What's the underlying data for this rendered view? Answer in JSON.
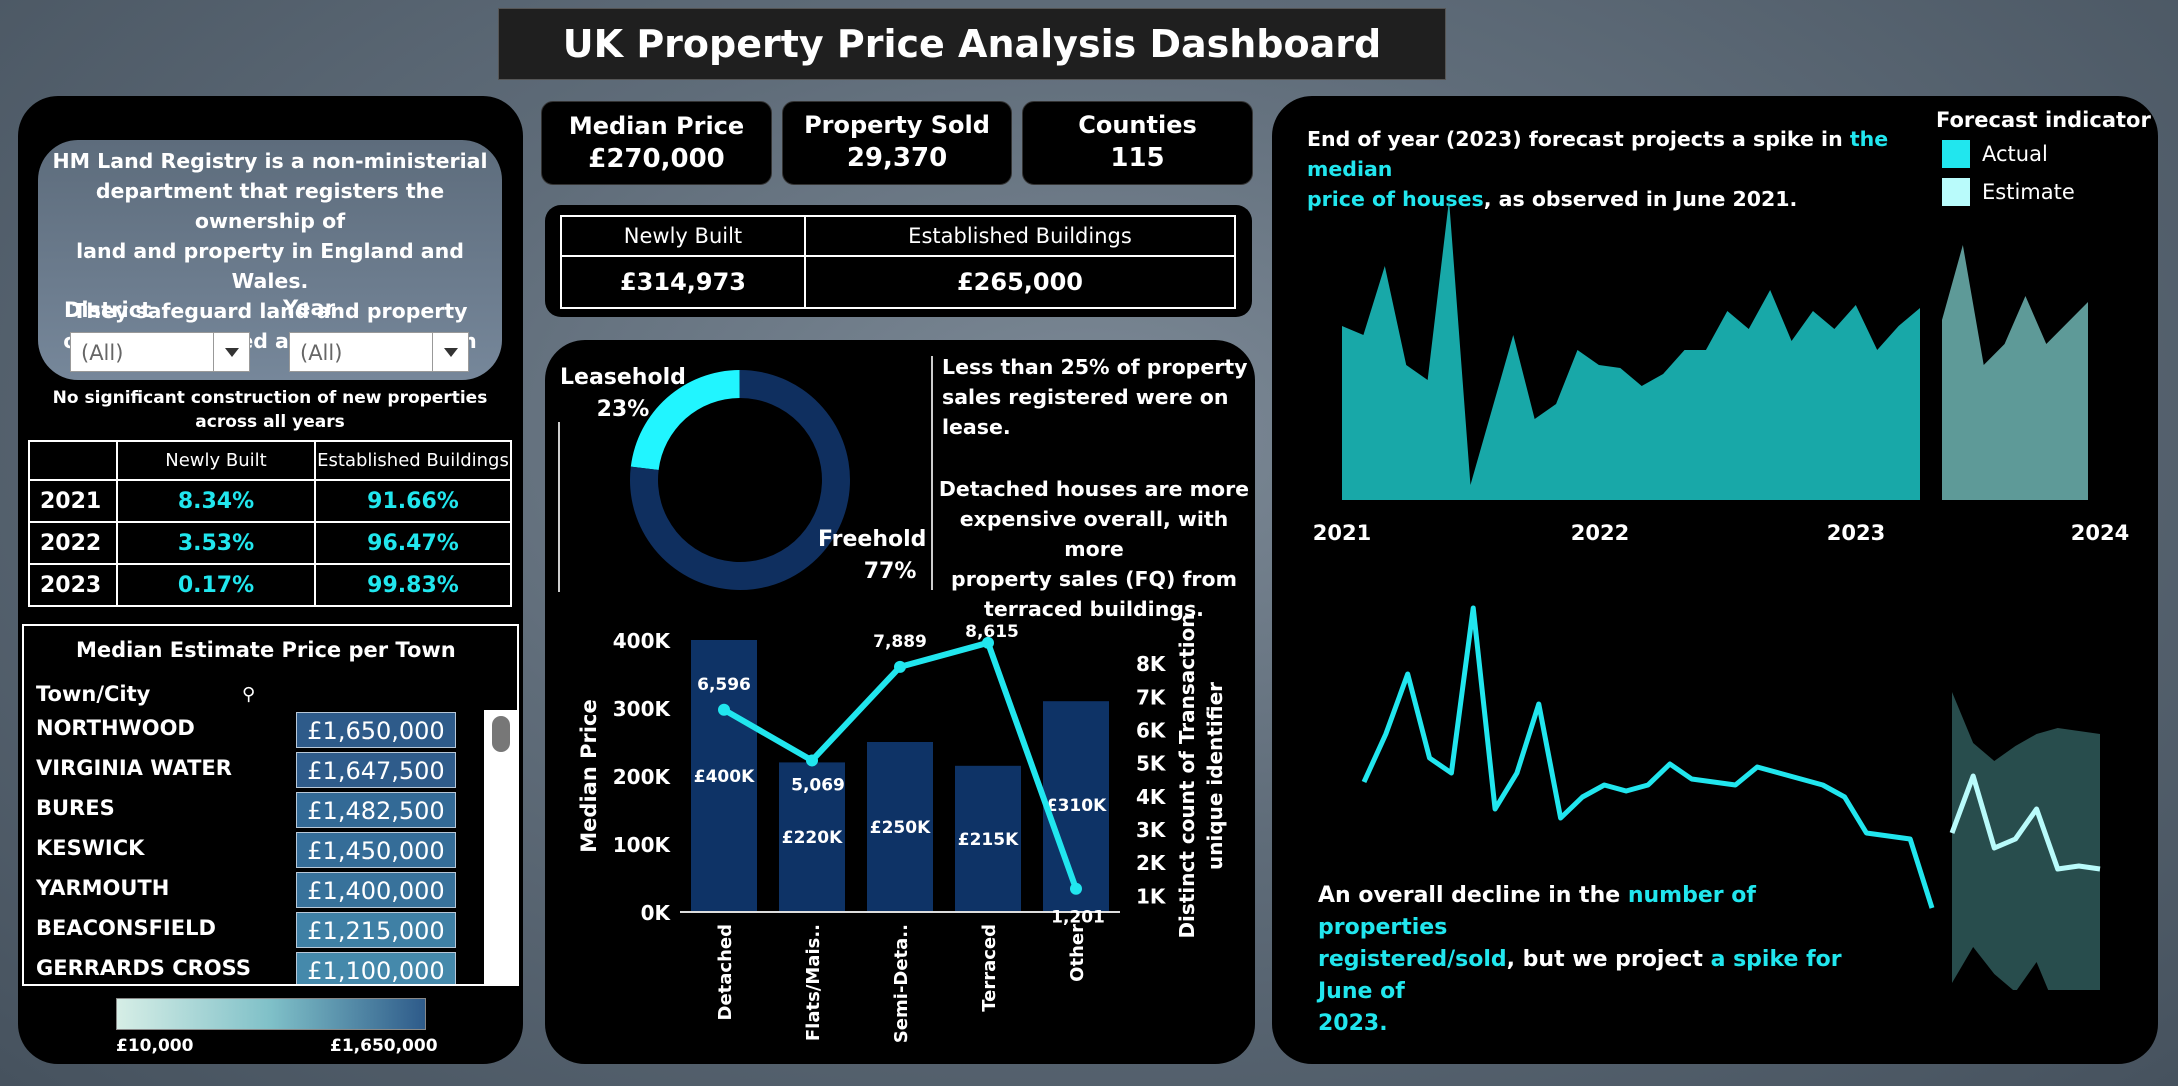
{
  "title": "UK Property Price Analysis Dashboard",
  "left": {
    "description": [
      "HM Land Registry is a non-ministerial",
      "department that registers the ownership of",
      "land and property in England and Wales.",
      "They safeguard land and property",
      "ownership valued at over £8 trillion"
    ],
    "filters": {
      "district_label": "District",
      "district_value": "(All)",
      "year_label": "Year",
      "year_value": "(All)"
    },
    "note": [
      "No significant construction of new properties",
      "across all years"
    ],
    "share_table": {
      "headers": [
        "Newly Built",
        "Established Buildings"
      ],
      "rows": [
        {
          "year": "2021",
          "newly_built": "8.34%",
          "established": "91.66%"
        },
        {
          "year": "2022",
          "newly_built": "3.53%",
          "established": "96.47%"
        },
        {
          "year": "2023",
          "newly_built": "0.17%",
          "established": "99.83%"
        }
      ]
    },
    "towns": {
      "title": "Median Estimate Price per Town",
      "column": "Town/City",
      "rows": [
        {
          "name": "NORTHWOOD",
          "price": "£1,650,000",
          "color": "#2e5b8a"
        },
        {
          "name": "VIRGINIA WATER",
          "price": "£1,647,500",
          "color": "#2f5c8b"
        },
        {
          "name": "BURES",
          "price": "£1,482,500",
          "color": "#336a96"
        },
        {
          "name": "KESWICK",
          "price": "£1,450,000",
          "color": "#356d98"
        },
        {
          "name": "YARMOUTH",
          "price": "£1,400,000",
          "color": "#38729b"
        },
        {
          "name": "BEACONSFIELD",
          "price": "£1,215,000",
          "color": "#3f80a5"
        },
        {
          "name": "GERRARDS CROSS",
          "price": "£1,100,000",
          "color": "#4589ab"
        }
      ],
      "legend_min": "£10,000",
      "legend_max": "£1,650,000"
    }
  },
  "kpis": {
    "median_price": {
      "label": "Median Price",
      "value": "£270,000"
    },
    "property_sold": {
      "label": "Property Sold",
      "value": "29,370"
    },
    "counties": {
      "label": "Counties",
      "value": "115"
    }
  },
  "build_type": {
    "headers": [
      "Newly Built",
      "Established Buildings"
    ],
    "values": [
      "£314,973",
      "£265,000"
    ]
  },
  "tenure": {
    "leasehold_label": "Leasehold",
    "leasehold_pct": "23%",
    "freehold_label": "Freehold",
    "freehold_pct": "77%",
    "text1": [
      "Less than 25% of property",
      "sales registered were on",
      "lease."
    ],
    "text2": [
      "Detached houses are more",
      "expensive overall, with more",
      "property sales (FQ) from",
      "terraced buildings."
    ]
  },
  "chart_data": [
    {
      "type": "pie",
      "labels": [
        "Leasehold",
        "Freehold"
      ],
      "values": [
        23,
        77
      ],
      "colors": [
        "#21f5ff",
        "#0f2f5f"
      ]
    },
    {
      "type": "bar",
      "categories": [
        "Detached",
        "Flats/Mais..",
        "Semi-Deta..",
        "Terraced",
        "Other"
      ],
      "ylabel": "Median Price",
      "y2label": "Distinct count of Transaction unique identifier",
      "ylim": [
        0,
        400000
      ],
      "y_ticks": [
        "0K",
        "100K",
        "200K",
        "300K",
        "400K"
      ],
      "y2lim": [
        500,
        8700
      ],
      "y2_ticks": [
        "1K",
        "2K",
        "3K",
        "4K",
        "5K",
        "6K",
        "7K",
        "8K"
      ],
      "series": [
        {
          "type": "bar",
          "values": [
            400000,
            220000,
            250000,
            215000,
            310000
          ],
          "labels": [
            "£400K",
            "£220K",
            "£250K",
            "£215K",
            "£310K"
          ]
        },
        {
          "type": "line",
          "values": [
            6596,
            5069,
            7889,
            8615,
            1201
          ],
          "labels": [
            "6,596",
            "5,069",
            "7,889",
            "8,615",
            "1,201"
          ]
        }
      ]
    },
    {
      "type": "area",
      "title": "End of year (2023) forecast projects a spike in the median price of houses, as observed in June 2021.",
      "x_ticks": [
        "2021",
        "2022",
        "2023",
        "2024"
      ],
      "legend_title": "Forecast indicator",
      "legend": [
        "Actual",
        "Estimate"
      ],
      "series": [
        {
          "name": "Actual",
          "values": [
            0.58,
            0.55,
            0.78,
            0.45,
            0.4,
            1.0,
            0.05,
            0.3,
            0.55,
            0.27,
            0.32,
            0.5,
            0.45,
            0.44,
            0.38,
            0.42,
            0.5,
            0.5,
            0.63,
            0.57,
            0.7,
            0.53,
            0.63,
            0.57,
            0.65,
            0.5,
            0.58,
            0.64
          ]
        },
        {
          "name": "Estimate",
          "values": [
            0.6,
            0.85,
            0.45,
            0.52,
            0.68,
            0.52,
            0.59,
            0.66
          ]
        }
      ]
    },
    {
      "type": "line",
      "title": "An overall decline in the number of properties registered/sold, but we project a spike for June of 2023.",
      "series": [
        {
          "name": "Actual",
          "values": [
            0.42,
            0.58,
            0.78,
            0.5,
            0.45,
            1.0,
            0.33,
            0.45,
            0.68,
            0.3,
            0.37,
            0.41,
            0.39,
            0.41,
            0.48,
            0.43,
            0.42,
            0.41,
            0.47,
            0.45,
            0.43,
            0.41,
            0.37,
            0.25,
            0.24,
            0.23,
            0.0
          ]
        },
        {
          "name": "Estimate",
          "values": [
            0.25,
            0.44,
            0.2,
            0.23,
            0.33,
            0.13,
            0.14,
            0.13
          ],
          "band_upper": [
            0.72,
            0.55,
            0.49,
            0.54,
            0.58,
            0.6,
            0.59,
            0.58
          ],
          "band_lower": [
            -0.25,
            -0.13,
            -0.22,
            -0.28,
            -0.18,
            -0.35,
            -0.38,
            -0.42
          ]
        }
      ]
    }
  ],
  "area_text": {
    "pre": "End of year (2023) forecast projects a spike in ",
    "hl": "the median",
    "line2_hl": "price of houses",
    "line2_post": ", as observed in June 2021."
  },
  "line_text": {
    "pre": "An overall decline in the ",
    "hl1": "number of properties",
    "hl1b": "registered/sold",
    "mid": ", but we project ",
    "hl2": "a spike for June of",
    "hl2b": "2023."
  },
  "colors": {
    "accent": "#21e6ee",
    "area": "#18a8a8",
    "estimate_area": "#5e9a98",
    "bar": "#0e3366"
  }
}
